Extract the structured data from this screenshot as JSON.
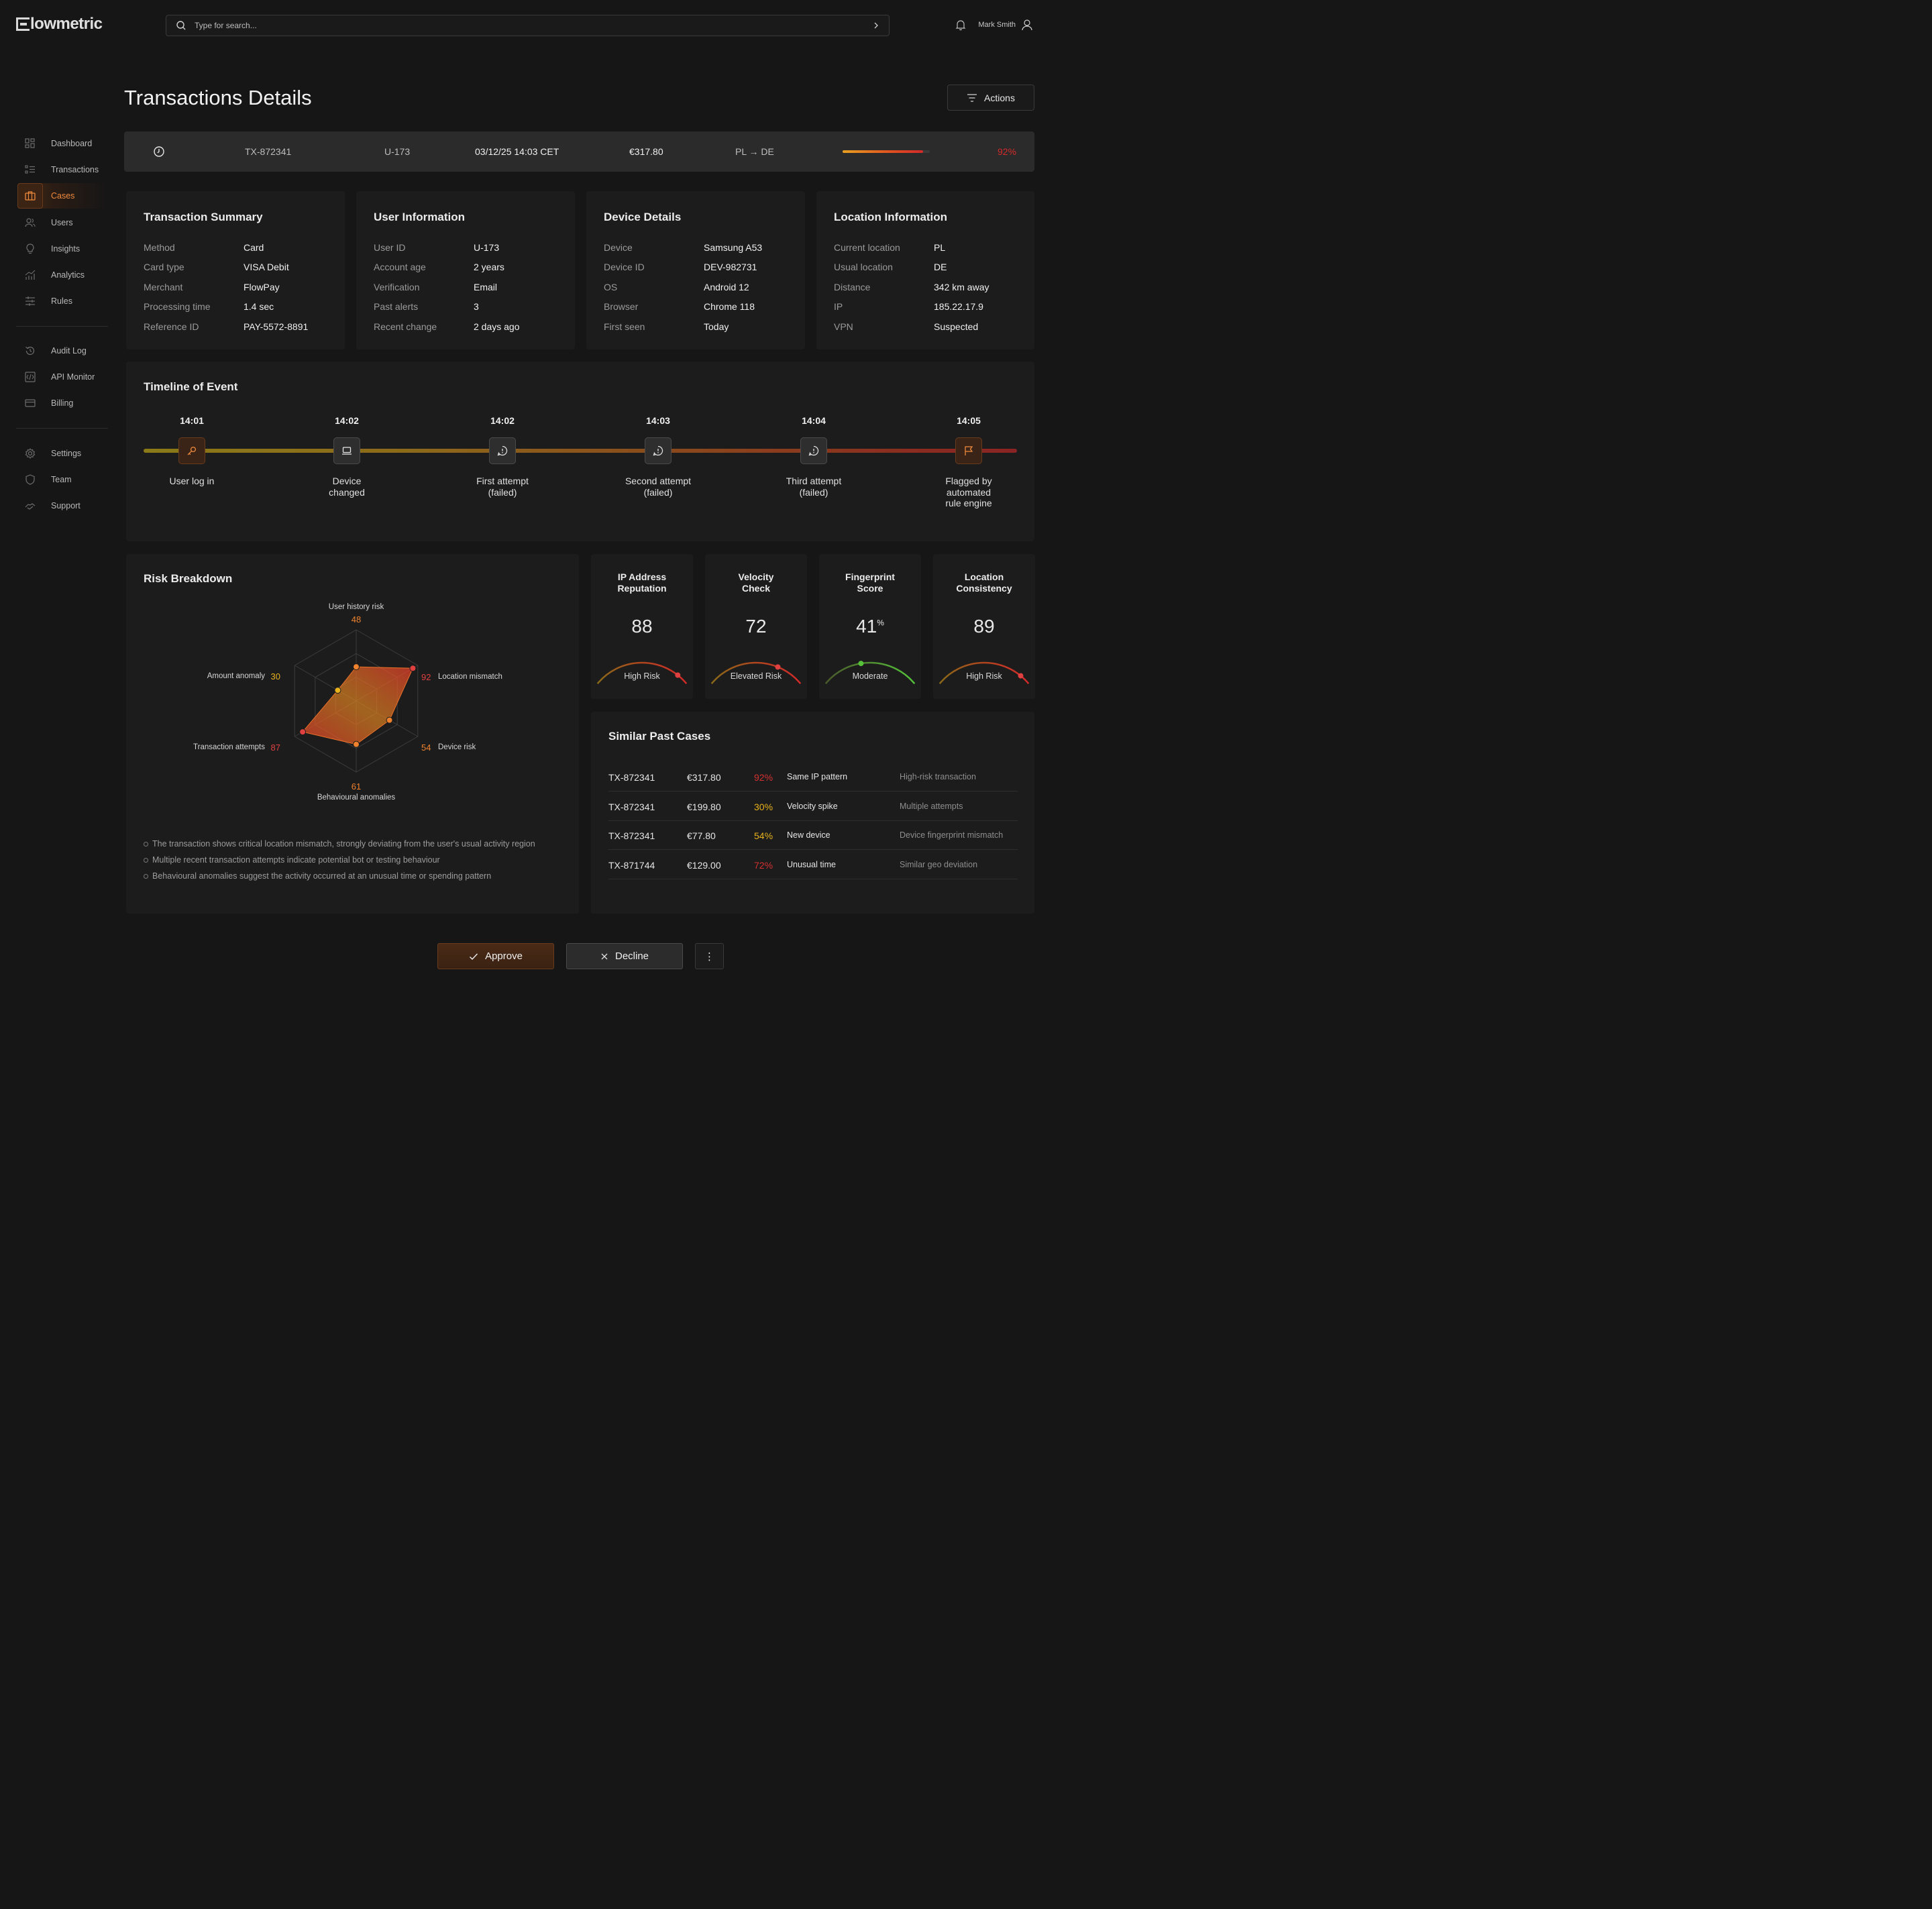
{
  "app": {
    "logo": "lowmetric",
    "search_placeholder": "Type for search...",
    "user_name": "Mark Smith"
  },
  "sidebar": {
    "primary": [
      {
        "label": "Dashboard",
        "icon": "dashboard-icon"
      },
      {
        "label": "Transactions",
        "icon": "list-icon"
      },
      {
        "label": "Cases",
        "icon": "briefcase-icon",
        "active": true
      },
      {
        "label": "Users",
        "icon": "users-icon"
      },
      {
        "label": "Insights",
        "icon": "lightbulb-icon"
      },
      {
        "label": "Analytics",
        "icon": "chart-icon"
      },
      {
        "label": "Rules",
        "icon": "sliders-icon"
      }
    ],
    "secondary": [
      {
        "label": "Audit Log",
        "icon": "history-icon"
      },
      {
        "label": "API Monitor",
        "icon": "api-icon"
      },
      {
        "label": "Billing",
        "icon": "card-icon"
      }
    ],
    "tertiary": [
      {
        "label": "Settings",
        "icon": "gear-icon"
      },
      {
        "label": "Team",
        "icon": "shield-icon"
      },
      {
        "label": "Support",
        "icon": "handshake-icon"
      }
    ]
  },
  "page": {
    "title": "Transactions Details",
    "actions_label": "Actions"
  },
  "txbar": {
    "tx_id": "TX-872341",
    "user_id": "U-173",
    "datetime": "03/12/25 14:03 CET",
    "amount": "€317.80",
    "route": "PL → DE",
    "risk_label": "92%",
    "risk_value": 0.92,
    "risk_color": "#d42a2a"
  },
  "cards": {
    "summary": {
      "title": "Transaction Summary",
      "rows": [
        {
          "k": "Method",
          "v": "Card"
        },
        {
          "k": "Card type",
          "v": "VISA Debit"
        },
        {
          "k": "Merchant",
          "v": "FlowPay"
        },
        {
          "k": "Processing time",
          "v": "1.4 sec"
        },
        {
          "k": "Reference ID",
          "v": "PAY-5572-8891"
        }
      ]
    },
    "user": {
      "title": "User Information",
      "rows": [
        {
          "k": "User ID",
          "v": "U-173"
        },
        {
          "k": "Account age",
          "v": "2 years"
        },
        {
          "k": "Verification",
          "v": "Email"
        },
        {
          "k": "Past alerts",
          "v": "3"
        },
        {
          "k": "Recent change",
          "v": "2 days ago"
        }
      ]
    },
    "device": {
      "title": "Device Details",
      "rows": [
        {
          "k": "Device",
          "v": "Samsung A53"
        },
        {
          "k": "Device ID",
          "v": "DEV-982731"
        },
        {
          "k": "OS",
          "v": "Android 12"
        },
        {
          "k": "Browser",
          "v": "Chrome 118"
        },
        {
          "k": "First seen",
          "v": "Today"
        }
      ]
    },
    "location": {
      "title": "Location Information",
      "rows": [
        {
          "k": "Current location",
          "v": "PL"
        },
        {
          "k": "Usual location",
          "v": "DE"
        },
        {
          "k": "Distance",
          "v": "342 km away"
        },
        {
          "k": "IP",
          "v": "185.22.17.9"
        },
        {
          "k": "VPN",
          "v": "Suspected"
        }
      ]
    }
  },
  "timeline": {
    "title": "Timeline of Event",
    "events": [
      {
        "time": "14:01",
        "label": "User log in",
        "icon": "key-icon"
      },
      {
        "time": "14:02",
        "label": "Device\nchanged",
        "icon": "laptop-icon"
      },
      {
        "time": "14:02",
        "label": "First  attempt\n(failed)",
        "icon": "message-alert-icon"
      },
      {
        "time": "14:03",
        "label": "Second attempt\n(failed)",
        "icon": "message-alert-icon"
      },
      {
        "time": "14:04",
        "label": "Third attempt\n(failed)",
        "icon": "message-alert-icon"
      },
      {
        "time": "14:05",
        "label": "Flagged by\nautomated\nrule engine",
        "icon": "flag-icon"
      }
    ]
  },
  "risk": {
    "title": "Risk Breakdown",
    "notes": [
      "The transaction shows critical location mismatch, strongly deviating from the user's usual activity region",
      "Multiple recent transaction attempts  indicate potential bot or testing behaviour",
      "Behavioural anomalies  suggest the activity occurred at an unusual time or spending pattern"
    ]
  },
  "chart_data": {
    "type": "radar",
    "categories": [
      "User history risk",
      "Location mismatch",
      "Device risk",
      "Behavioural anomalies",
      "Transaction attempts",
      "Amount anomaly"
    ],
    "values": [
      48,
      92,
      54,
      61,
      87,
      30
    ],
    "value_labels": [
      "48",
      "92",
      "54",
      "61",
      "87",
      "30"
    ],
    "value_colors": [
      "#f0822e",
      "#e04040",
      "#f0822e",
      "#f0822e",
      "#e04040",
      "#e8b21c"
    ],
    "range": [
      0,
      100
    ],
    "grid_rings": 3
  },
  "scores": [
    {
      "title": "IP Address\nReputation",
      "value": "88",
      "label": "High Risk",
      "level": 0.88,
      "color": "#e04040"
    },
    {
      "title": "Velocity\nCheck",
      "value": "72",
      "label": "Elevated Risk",
      "level": 0.72,
      "color": "#e04040"
    },
    {
      "title": "Fingerprint\nScore",
      "value": "41",
      "unit": "%",
      "label": "Moderate",
      "level": 0.41,
      "color": "#55c23a"
    },
    {
      "title": "Location\nConsistency",
      "value": "89",
      "label": "High Risk",
      "level": 0.89,
      "color": "#e04040"
    }
  ],
  "similar": {
    "title": "Similar Past Cases",
    "rows": [
      {
        "id": "TX-872341",
        "amount": "€317.80",
        "risk": "92%",
        "risk_color": "#d43030",
        "pattern": "Same IP pattern",
        "note": "High-risk transaction"
      },
      {
        "id": "TX-872341",
        "amount": "€199.80",
        "risk": "30%",
        "risk_color": "#e8b21c",
        "pattern": "Velocity spike",
        "note": "Multiple attempts"
      },
      {
        "id": "TX-872341",
        "amount": "€77.80",
        "risk": "54%",
        "risk_color": "#e8b21c",
        "pattern": "New device",
        "note": "Device fingerprint mismatch"
      },
      {
        "id": "TX-871744",
        "amount": "€129.00",
        "risk": "72%",
        "risk_color": "#d43030",
        "pattern": "Unusual time",
        "note": "Similar geo deviation"
      }
    ]
  },
  "buttons": {
    "approve": "Approve",
    "decline": "Decline",
    "more": "⋮"
  }
}
